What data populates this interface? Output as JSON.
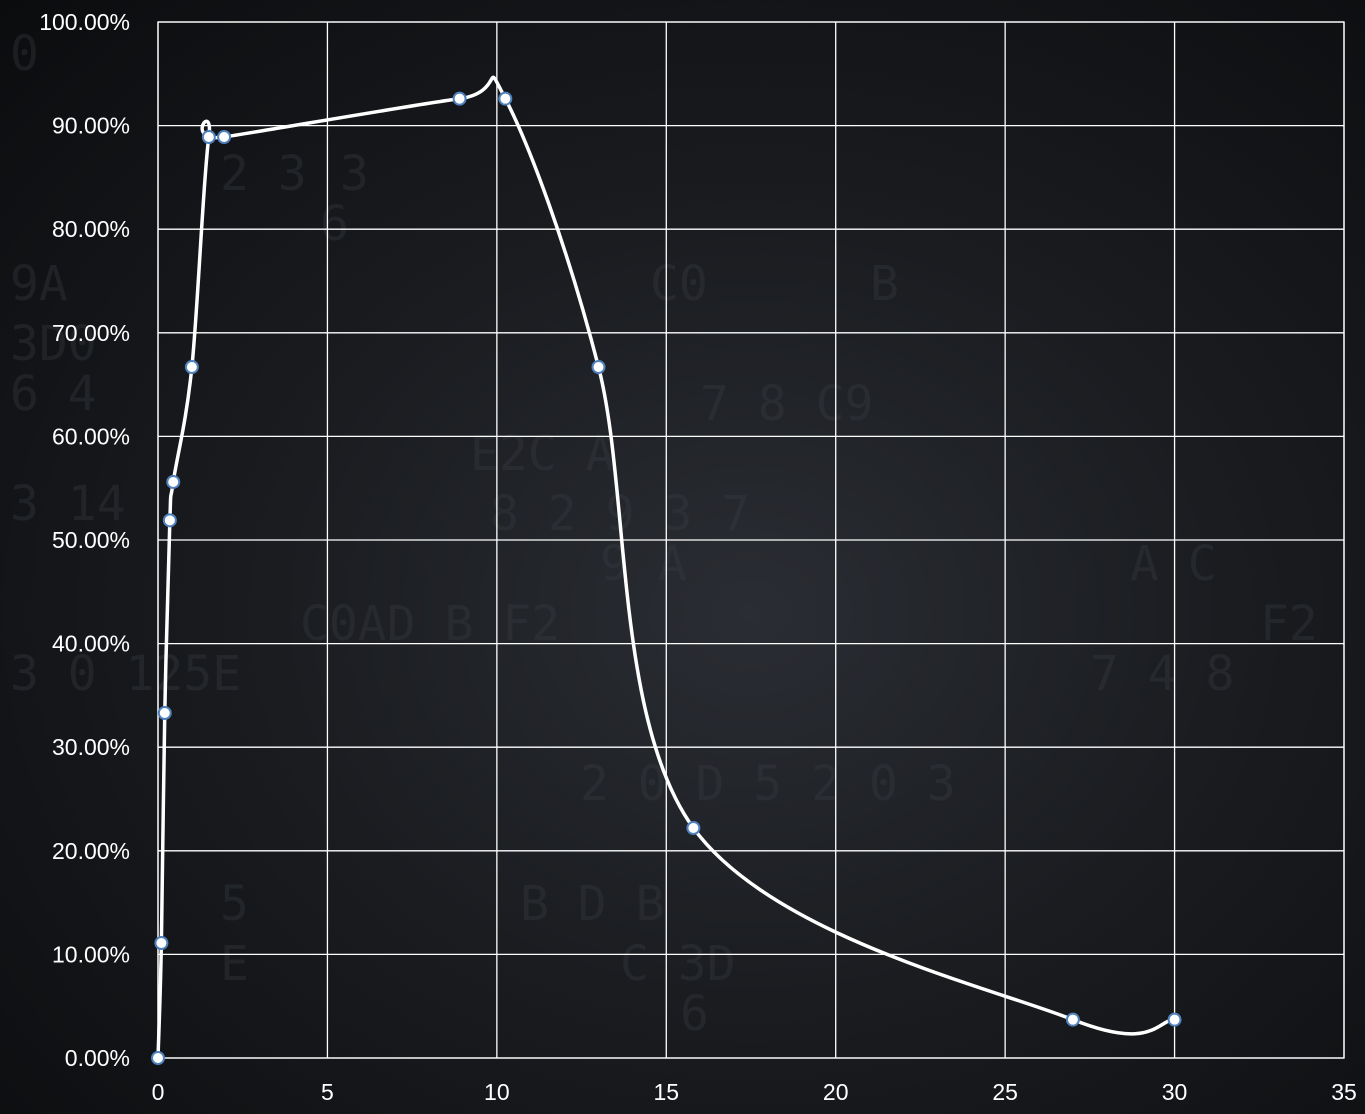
{
  "chart_data": {
    "type": "scatter",
    "title": "",
    "xlabel": "",
    "ylabel": "",
    "xlim": [
      0,
      35
    ],
    "ylim": [
      0,
      1
    ],
    "x_ticks": [
      0,
      5,
      10,
      15,
      20,
      25,
      30,
      35
    ],
    "y_ticks": [
      0,
      0.1,
      0.2,
      0.3,
      0.4,
      0.5,
      0.6,
      0.7,
      0.8,
      0.9,
      1.0
    ],
    "x_tick_labels": [
      "0",
      "5",
      "10",
      "15",
      "20",
      "25",
      "30",
      "35"
    ],
    "y_tick_labels": [
      "0.00%",
      "10.00%",
      "20.00%",
      "30.00%",
      "40.00%",
      "50.00%",
      "60.00%",
      "70.00%",
      "80.00%",
      "90.00%",
      "100.00%"
    ],
    "grid": true,
    "smooth_line": true,
    "series": [
      {
        "x": [
          0.0,
          0.1,
          0.2,
          0.35,
          0.45,
          1.0,
          1.5,
          1.95,
          8.9,
          10.25,
          13.0,
          15.8,
          27.0,
          30.0
        ],
        "y": [
          0.0,
          0.111,
          0.333,
          0.519,
          0.556,
          0.667,
          0.889,
          0.889,
          0.926,
          0.926,
          0.667,
          0.222,
          0.037,
          0.037
        ]
      }
    ],
    "colors": {
      "line": "#ffffff",
      "marker_fill": "#ffffff",
      "marker_edge": "#4f81bd",
      "grid": "#ffffff",
      "text": "#ffffff"
    }
  }
}
